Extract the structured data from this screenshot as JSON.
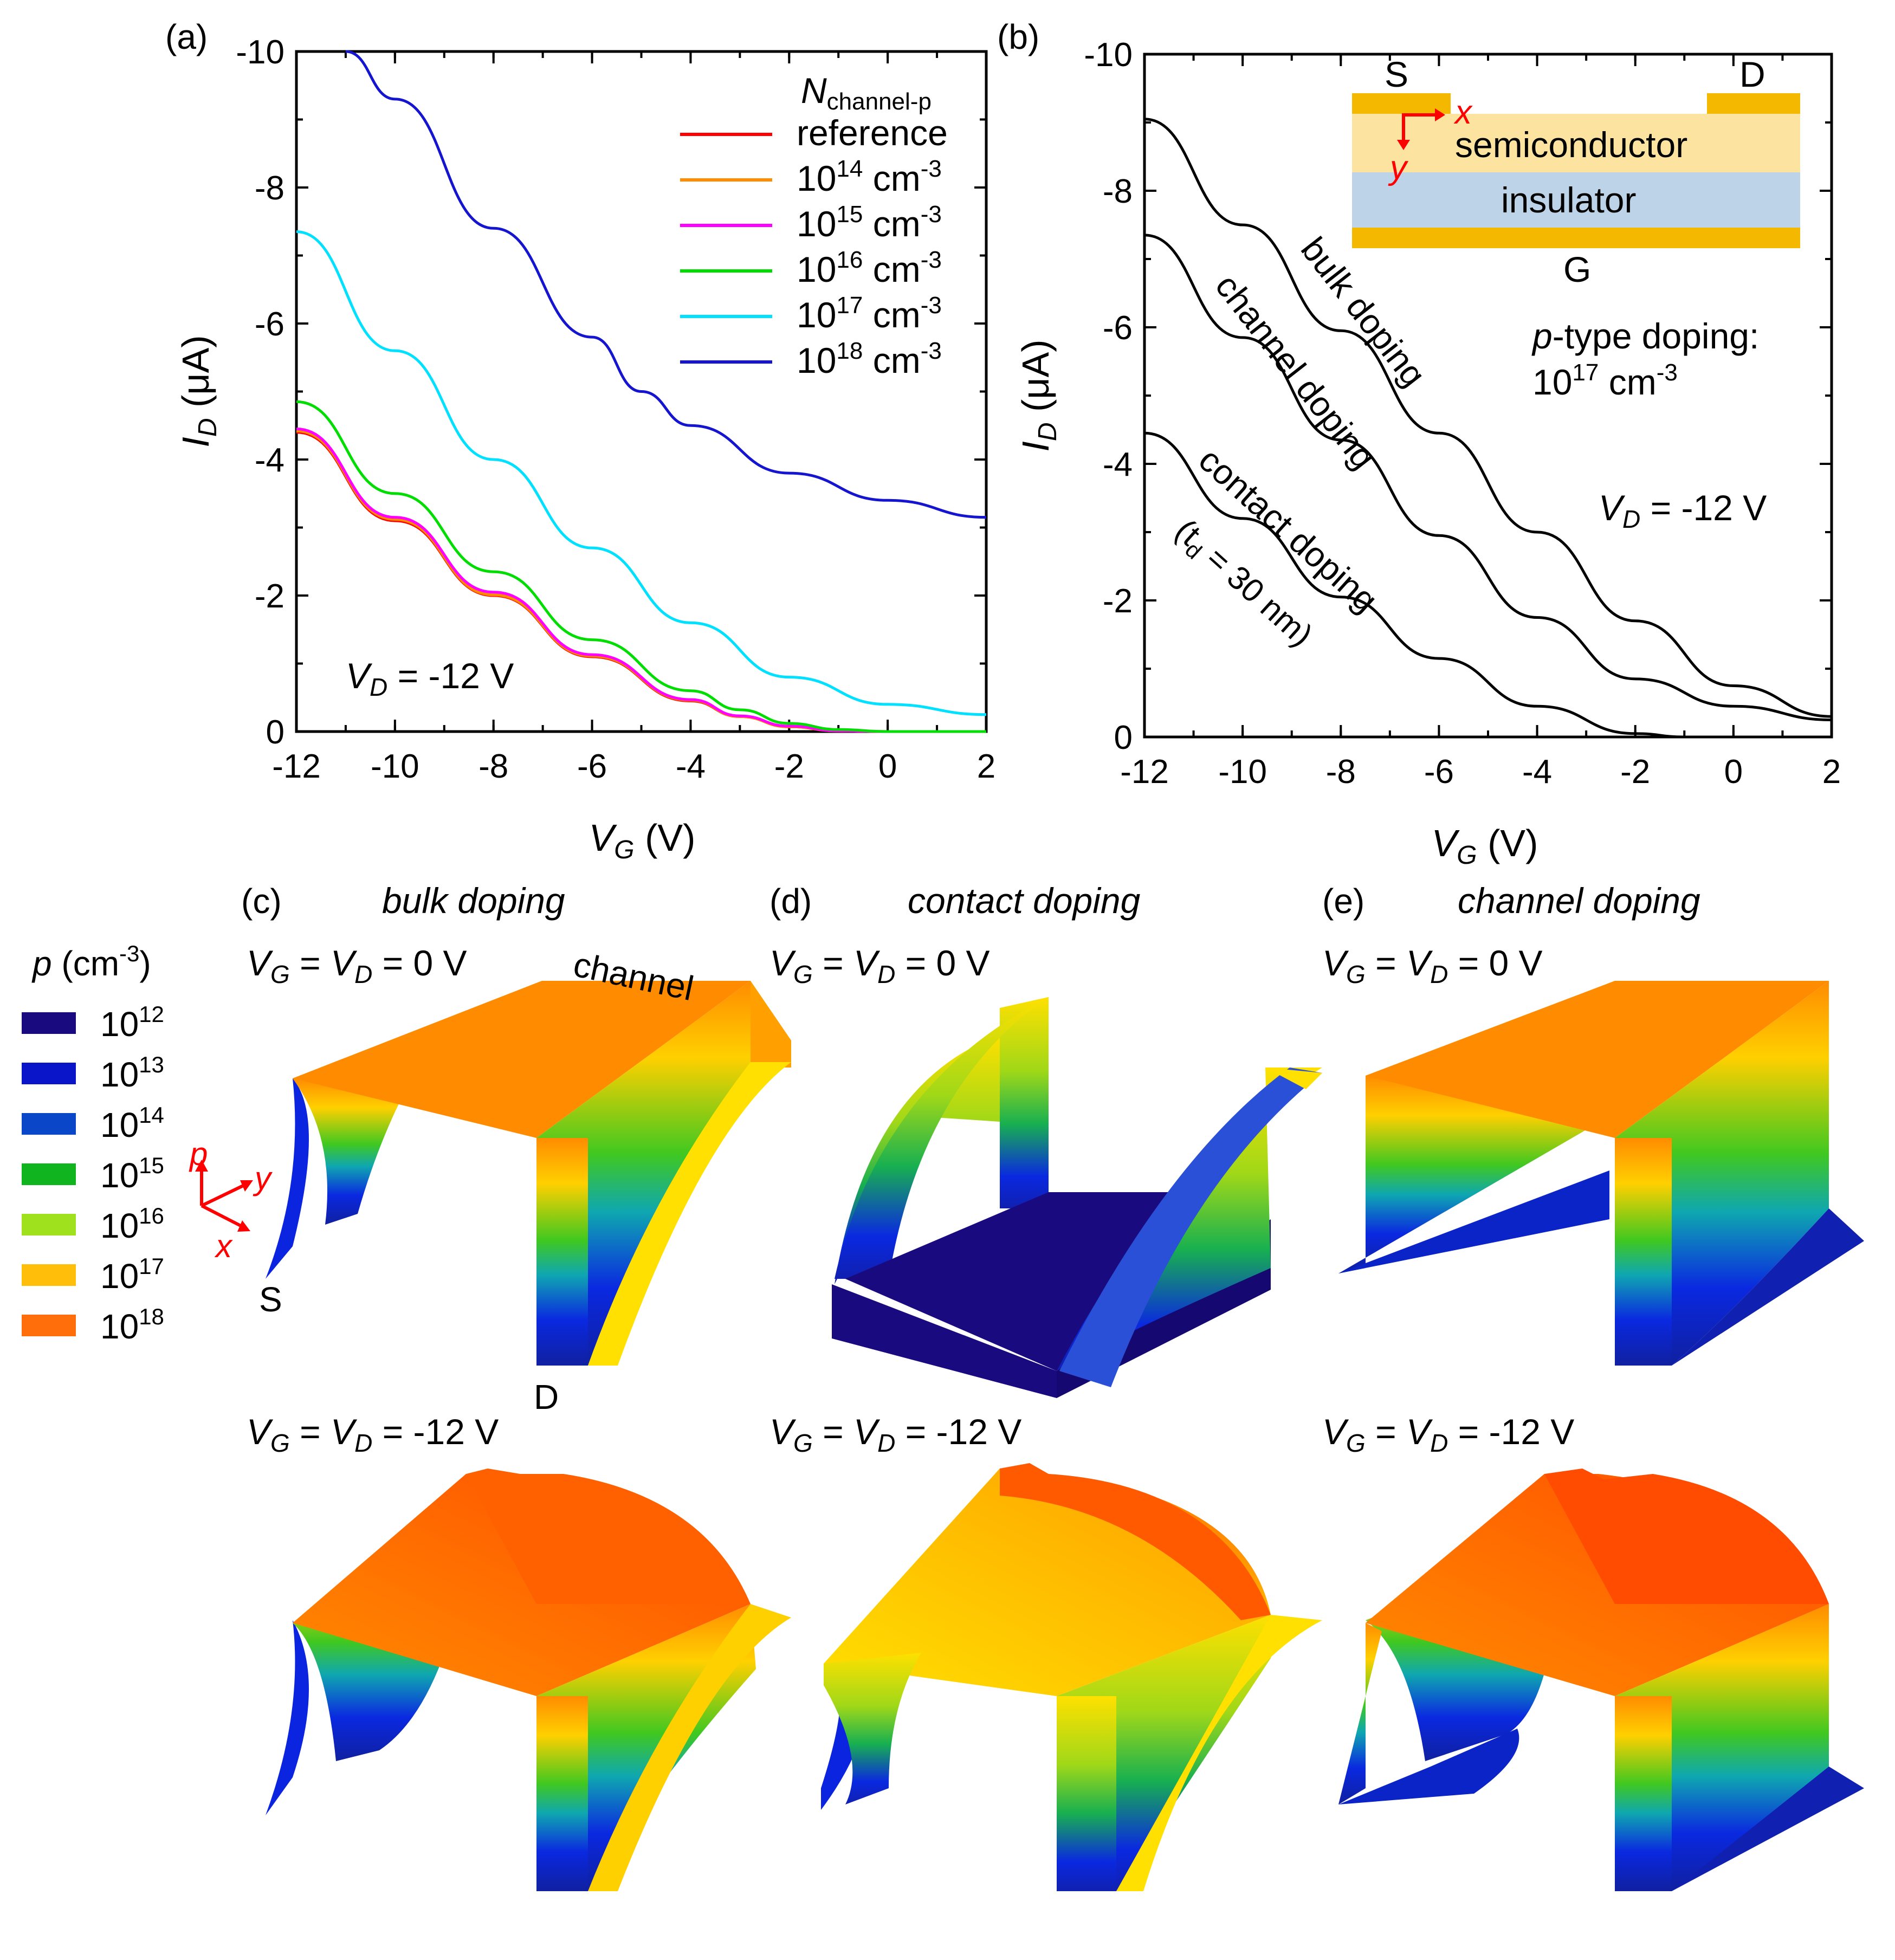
{
  "panels": {
    "a": {
      "label": "(a)"
    },
    "b": {
      "label": "(b)"
    },
    "c": {
      "label": "(c)",
      "title": "bulk doping"
    },
    "d": {
      "label": "(d)",
      "title": "contact doping"
    },
    "e": {
      "label": "(e)",
      "title": "channel doping"
    }
  },
  "surfaces": {
    "top_condition": {
      "prefix": "V",
      "sub1": "G",
      "mid": " = V",
      "sub2": "D",
      "suffix": " = 0 V"
    },
    "bottom_condition": {
      "prefix": "V",
      "sub1": "G",
      "mid": " = V",
      "sub2": "D",
      "suffix": " = -12 V"
    },
    "channel_label": "channel",
    "source_label": "S",
    "drain_label": "D",
    "axes_p": "p",
    "axes_x": "x",
    "axes_y": "y"
  },
  "colorbar": {
    "title_var": "p",
    "title_unit": " (cm",
    "title_exp": "-3",
    "title_close": ")",
    "entries": [
      {
        "base": "10",
        "exp": "12",
        "color": "#1a0a80"
      },
      {
        "base": "10",
        "exp": "13",
        "color": "#0a14c8"
      },
      {
        "base": "10",
        "exp": "14",
        "color": "#0a46c8"
      },
      {
        "base": "10",
        "exp": "15",
        "color": "#10b41e"
      },
      {
        "base": "10",
        "exp": "16",
        "color": "#a0e11e"
      },
      {
        "base": "10",
        "exp": "17",
        "color": "#ffbe0a"
      },
      {
        "base": "10",
        "exp": "18",
        "color": "#ff6e0a"
      }
    ]
  },
  "chart_data": [
    {
      "type": "line",
      "panel": "a",
      "xlabel": {
        "var": "V",
        "sub": "G",
        "unit": " (V)"
      },
      "ylabel": {
        "var": "I",
        "sub": "D",
        "unit": " (μA)"
      },
      "xlim": [
        -12,
        2
      ],
      "ylim": [
        0,
        -10
      ],
      "xticks": [
        -12,
        -10,
        -8,
        -6,
        -4,
        -2,
        0,
        2
      ],
      "yticks": [
        0,
        -2,
        -4,
        -6,
        -8,
        -10
      ],
      "legend_title": {
        "var": "N",
        "sub": "channel-p"
      },
      "annotation": {
        "var": "V",
        "sub": "D",
        "value": " = -12 V"
      },
      "series": [
        {
          "name": "reference",
          "color": "#ff0000",
          "x": [
            -12,
            -10,
            -8,
            -6,
            -4,
            -3,
            -2,
            -1,
            0,
            1,
            2
          ],
          "y": [
            -4.4,
            -3.1,
            -2.0,
            -1.1,
            -0.45,
            -0.22,
            -0.07,
            -0.01,
            0,
            0,
            0
          ]
        },
        {
          "name": "10",
          "exp": "14",
          "unit": " cm",
          "uexp": "-3",
          "color": "#ff8c00",
          "x": [
            -12,
            -10,
            -8,
            -6,
            -4,
            -3,
            -2,
            -1,
            0,
            1,
            2
          ],
          "y": [
            -4.42,
            -3.12,
            -2.01,
            -1.11,
            -0.46,
            -0.22,
            -0.07,
            -0.01,
            0,
            0,
            0
          ]
        },
        {
          "name": "10",
          "exp": "15",
          "unit": " cm",
          "uexp": "-3",
          "color": "#ff00ff",
          "x": [
            -12,
            -10,
            -8,
            -6,
            -4,
            -3,
            -2,
            -1,
            0,
            1,
            2
          ],
          "y": [
            -4.45,
            -3.15,
            -2.05,
            -1.13,
            -0.47,
            -0.23,
            -0.08,
            -0.01,
            0,
            0,
            0
          ]
        },
        {
          "name": "10",
          "exp": "16",
          "unit": " cm",
          "uexp": "-3",
          "color": "#00dd00",
          "x": [
            -12,
            -10,
            -8,
            -6,
            -4,
            -3,
            -2,
            -1,
            0,
            1,
            2
          ],
          "y": [
            -4.85,
            -3.5,
            -2.35,
            -1.35,
            -0.6,
            -0.32,
            -0.12,
            -0.03,
            0,
            0,
            0
          ]
        },
        {
          "name": "10",
          "exp": "17",
          "unit": " cm",
          "uexp": "-3",
          "color": "#00e0ff",
          "x": [
            -12,
            -10,
            -8,
            -6,
            -4,
            -2,
            0,
            2
          ],
          "y": [
            -7.35,
            -5.6,
            -4.0,
            -2.7,
            -1.6,
            -0.8,
            -0.4,
            -0.25
          ]
        },
        {
          "name": "10",
          "exp": "18",
          "unit": " cm",
          "uexp": "-3",
          "color": "#1515d0",
          "x": [
            -11,
            -10,
            -8,
            -6,
            -5,
            -4,
            -2,
            0,
            2
          ],
          "y": [
            -10,
            -9.3,
            -7.4,
            -5.8,
            -5.0,
            -4.5,
            -3.8,
            -3.4,
            -3.15
          ]
        }
      ]
    },
    {
      "type": "line",
      "panel": "b",
      "xlabel": {
        "var": "V",
        "sub": "G",
        "unit": " (V)"
      },
      "ylabel": {
        "var": "I",
        "sub": "D",
        "unit": " (μA)"
      },
      "xlim": [
        -12,
        2
      ],
      "ylim": [
        0,
        -10
      ],
      "xticks": [
        -12,
        -10,
        -8,
        -6,
        -4,
        -2,
        0,
        2
      ],
      "yticks": [
        0,
        -2,
        -4,
        -6,
        -8,
        -10
      ],
      "annotation": {
        "var": "V",
        "sub": "D",
        "value": " = -12 V"
      },
      "doping_note": {
        "prefix": "p",
        "text": "-type doping:",
        "base": "10",
        "exp": "17",
        "unit": " cm",
        "uexp": "-3"
      },
      "inset": {
        "source": "S",
        "drain": "D",
        "gate": "G",
        "semiconductor": "semiconductor",
        "insulator": "insulator",
        "x_axis": "x",
        "y_axis": "y"
      },
      "series": [
        {
          "name": "bulk doping",
          "color": "#000000",
          "x": [
            -12,
            -10,
            -8,
            -6,
            -4,
            -2,
            0,
            2
          ],
          "y": [
            -9.05,
            -7.5,
            -5.95,
            -4.45,
            -3.0,
            -1.7,
            -0.75,
            -0.3
          ]
        },
        {
          "name": "channel doping",
          "color": "#000000",
          "x": [
            -12,
            -10,
            -8,
            -6,
            -4,
            -2,
            0,
            2
          ],
          "y": [
            -7.35,
            -5.85,
            -4.35,
            -2.95,
            -1.75,
            -0.85,
            -0.45,
            -0.25
          ]
        },
        {
          "name": "contact doping",
          "note": "(t",
          "note_sub": "d",
          "note_rest": " = 30 nm)",
          "color": "#000000",
          "x": [
            -12,
            -10,
            -8,
            -6,
            -4,
            -2,
            -1,
            0,
            2
          ],
          "y": [
            -4.45,
            -3.2,
            -2.05,
            -1.15,
            -0.45,
            -0.05,
            0,
            0,
            0
          ]
        }
      ]
    }
  ]
}
